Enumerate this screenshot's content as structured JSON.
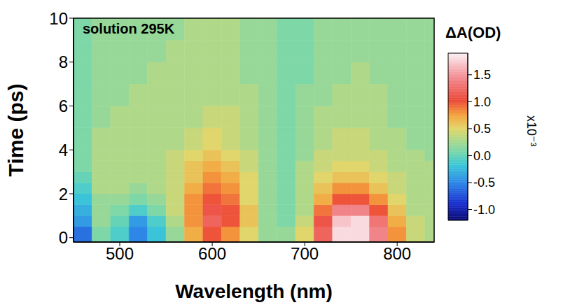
{
  "chart_data": {
    "type": "heatmap",
    "annotation": "solution 295K",
    "x_label": "Wavelength (nm)",
    "y_label": "Time (ps)",
    "xlim": [
      450,
      840
    ],
    "ylim": [
      -0.2,
      10
    ],
    "xticks": [
      500,
      600,
      700,
      800
    ],
    "yticks": [
      0,
      2,
      4,
      6,
      8,
      10
    ],
    "x_bins": [
      450,
      470,
      490,
      510,
      530,
      550,
      570,
      590,
      610,
      630,
      650,
      670,
      690,
      710,
      730,
      750,
      770,
      790,
      810,
      830,
      840
    ],
    "y_bins": [
      -0.2,
      0.5,
      1,
      1.5,
      2,
      2.5,
      3,
      3.5,
      4,
      5,
      6,
      7,
      8,
      9,
      10
    ],
    "cells": [
      [
        -0.6,
        0.1,
        -0.1,
        -0.5,
        -0.2,
        0.2,
        0.7,
        1.0,
        0.8,
        0.5,
        0.2,
        0.2,
        0.5,
        1.2,
        1.8,
        1.8,
        1.4,
        0.8,
        0.4,
        0.3
      ],
      [
        -0.4,
        0.2,
        0.0,
        -0.4,
        -0.1,
        0.3,
        0.8,
        1.2,
        1.0,
        0.6,
        0.2,
        0.1,
        0.4,
        1.1,
        1.7,
        1.8,
        1.3,
        0.7,
        0.4,
        0.3
      ],
      [
        -0.3,
        0.2,
        0.1,
        -0.1,
        0.1,
        0.4,
        0.8,
        1.1,
        1.0,
        0.6,
        0.2,
        0.1,
        0.3,
        0.9,
        1.4,
        1.4,
        1.0,
        0.6,
        0.3,
        0.3
      ],
      [
        -0.2,
        0.2,
        0.2,
        0.1,
        0.2,
        0.4,
        0.8,
        1.0,
        0.9,
        0.5,
        0.2,
        0.1,
        0.3,
        0.7,
        1.0,
        1.0,
        0.8,
        0.5,
        0.3,
        0.3
      ],
      [
        -0.1,
        0.3,
        0.3,
        0.2,
        0.3,
        0.4,
        0.7,
        0.9,
        0.8,
        0.5,
        0.2,
        0.1,
        0.3,
        0.6,
        0.8,
        0.8,
        0.6,
        0.4,
        0.3,
        0.3
      ],
      [
        0.0,
        0.3,
        0.3,
        0.3,
        0.3,
        0.4,
        0.6,
        0.8,
        0.7,
        0.5,
        0.2,
        0.1,
        0.3,
        0.5,
        0.6,
        0.6,
        0.5,
        0.4,
        0.3,
        0.3
      ],
      [
        0.1,
        0.3,
        0.3,
        0.3,
        0.3,
        0.4,
        0.6,
        0.7,
        0.6,
        0.4,
        0.2,
        0.1,
        0.3,
        0.4,
        0.5,
        0.5,
        0.4,
        0.3,
        0.3,
        0.3
      ],
      [
        0.1,
        0.3,
        0.3,
        0.3,
        0.3,
        0.4,
        0.5,
        0.6,
        0.5,
        0.4,
        0.2,
        0.1,
        0.2,
        0.4,
        0.4,
        0.4,
        0.4,
        0.3,
        0.3,
        0.2
      ],
      [
        0.1,
        0.3,
        0.3,
        0.3,
        0.3,
        0.3,
        0.4,
        0.5,
        0.4,
        0.3,
        0.2,
        0.1,
        0.2,
        0.3,
        0.4,
        0.4,
        0.3,
        0.3,
        0.2,
        0.2
      ],
      [
        0.1,
        0.2,
        0.3,
        0.3,
        0.3,
        0.3,
        0.3,
        0.4,
        0.4,
        0.3,
        0.2,
        0.1,
        0.2,
        0.3,
        0.3,
        0.3,
        0.3,
        0.2,
        0.2,
        0.2
      ],
      [
        0.1,
        0.2,
        0.2,
        0.3,
        0.3,
        0.3,
        0.3,
        0.3,
        0.3,
        0.3,
        0.2,
        0.1,
        0.2,
        0.2,
        0.3,
        0.3,
        0.3,
        0.2,
        0.2,
        0.2
      ],
      [
        0.1,
        0.2,
        0.2,
        0.2,
        0.3,
        0.3,
        0.3,
        0.3,
        0.3,
        0.2,
        0.2,
        0.1,
        0.1,
        0.2,
        0.2,
        0.3,
        0.2,
        0.2,
        0.2,
        0.2
      ],
      [
        0.1,
        0.2,
        0.2,
        0.2,
        0.2,
        0.3,
        0.3,
        0.3,
        0.3,
        0.2,
        0.2,
        0.1,
        0.1,
        0.2,
        0.2,
        0.2,
        0.2,
        0.2,
        0.2,
        0.2
      ],
      [
        0.1,
        0.2,
        0.2,
        0.2,
        0.2,
        0.2,
        0.3,
        0.3,
        0.3,
        0.2,
        0.2,
        0.1,
        0.1,
        0.2,
        0.2,
        0.2,
        0.2,
        0.2,
        0.2,
        0.2
      ]
    ],
    "colorbar_title": "ΔA(OD)",
    "colorbar_scale_label": "x10⁻³",
    "colorbar_range": [
      -1.2,
      1.9
    ],
    "colorbar_ticks": [
      {
        "value": -1,
        "label": "-1.0"
      },
      {
        "value": -0.5,
        "label": "-0.5"
      },
      {
        "value": 0,
        "label": "0.0"
      },
      {
        "value": 0.5,
        "label": "0.5"
      },
      {
        "value": 1,
        "label": "1.0"
      },
      {
        "value": 1.5,
        "label": "1.5"
      }
    ]
  }
}
